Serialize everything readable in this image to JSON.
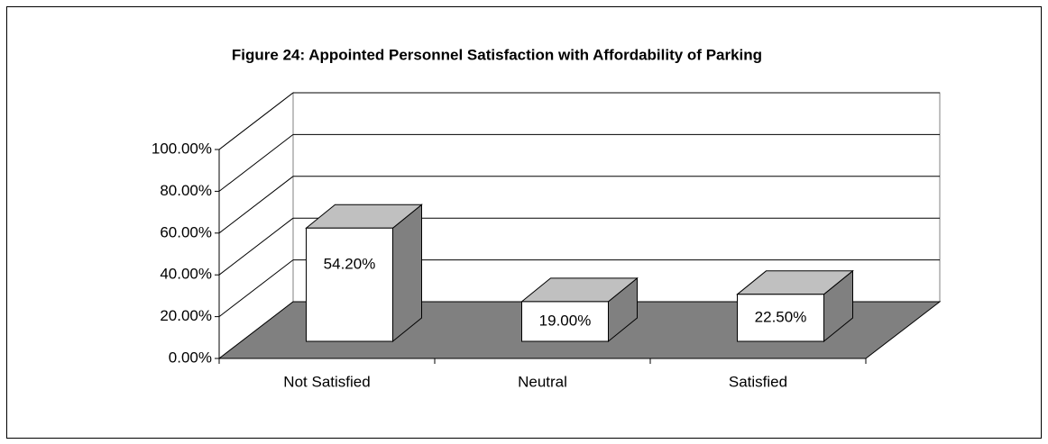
{
  "chart_data": {
    "type": "bar3d",
    "title": "Figure 24:   Appointed Personnel Satisfaction with  Affordability of Parking",
    "categories": [
      "Not Satisfied",
      "Neutral",
      "Satisfied"
    ],
    "values": [
      54.2,
      19.0,
      22.5
    ],
    "value_labels": [
      "54.20%",
      "19.00%",
      "22.50%"
    ],
    "ylim": [
      0,
      100
    ],
    "yticks": [
      {
        "value": 0,
        "label": "0.00%"
      },
      {
        "value": 20,
        "label": "20.00%"
      },
      {
        "value": 40,
        "label": "40.00%"
      },
      {
        "value": 60,
        "label": "60.00%"
      },
      {
        "value": 80,
        "label": "80.00%"
      },
      {
        "value": 100,
        "label": "100.00%"
      }
    ],
    "grid": true,
    "color": "#ffffff"
  }
}
